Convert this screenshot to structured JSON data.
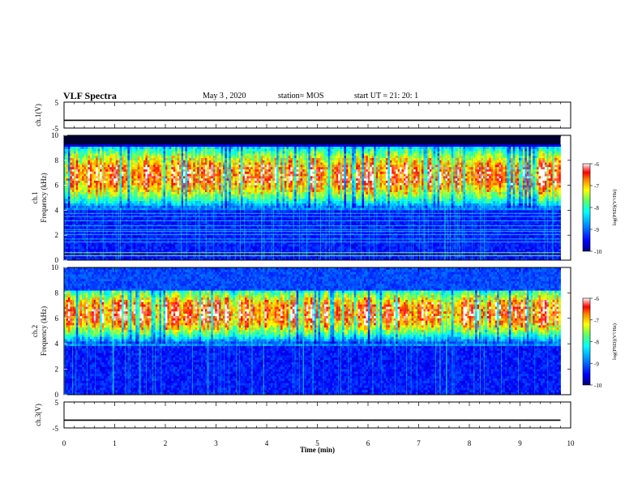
{
  "header": {
    "title": "VLF Spectra",
    "date": "May 3  , 2020",
    "station": "station= MOS",
    "start": "start  UT  =   21: 20: 1"
  },
  "chart_data": [
    {
      "type": "line",
      "panel": "ch1-voltage",
      "ylabel": "ch.1(V)",
      "yticks": [
        "5",
        "-5"
      ],
      "ylim": [
        -5,
        5
      ],
      "xlim": [
        0,
        10
      ],
      "series": [
        {
          "x": [
            0,
            9.8
          ],
          "values": [
            -2.0,
            -2.0
          ]
        }
      ]
    },
    {
      "type": "heatmap",
      "panel": "ch1-spectrogram",
      "ylabel": "ch.1",
      "ylabel2": "Frequency  (kHz)",
      "yticks": [
        "0",
        "2",
        "4",
        "6",
        "8",
        "10"
      ],
      "ylim": [
        0,
        10
      ],
      "xlim": [
        0,
        9.8
      ],
      "colorbar": {
        "label": "log(PSD)(V²/Hz)",
        "ticks": [
          "-6",
          "-7",
          "-8",
          "-9",
          "-10"
        ],
        "range": [
          -10,
          -6
        ]
      },
      "features": {
        "black_band_khz": [
          9.2,
          10
        ],
        "emission_band_khz": [
          4.2,
          9.0
        ],
        "peak_band_khz": [
          6.0,
          7.6
        ],
        "background_below_khz": 4.0,
        "horizontal_lines_khz": [
          0.35,
          0.6,
          1.45,
          1.7,
          2.05,
          2.3,
          2.45,
          2.75,
          3.15,
          3.5,
          3.75
        ]
      }
    },
    {
      "type": "heatmap",
      "panel": "ch2-spectrogram",
      "ylabel": "ch.2",
      "ylabel2": "Frequency  (kHz)",
      "yticks": [
        "0",
        "2",
        "4",
        "6",
        "8",
        "10"
      ],
      "ylim": [
        0,
        10
      ],
      "xlim": [
        0,
        9.8
      ],
      "colorbar": {
        "label": "log(PSD)(V²/Hz)",
        "ticks": [
          "-6",
          "-7",
          "-8",
          "-9",
          "-10"
        ],
        "range": [
          -10,
          -6
        ]
      },
      "features": {
        "emission_band_khz": [
          4.0,
          8.2
        ],
        "peak_band_khz": [
          5.4,
          7.4
        ],
        "background_below_khz": 3.8
      }
    },
    {
      "type": "line",
      "panel": "ch3-voltage",
      "ylabel": "ch.3(V)",
      "yticks": [
        "5",
        "-5"
      ],
      "ylim": [
        -5,
        5
      ],
      "xlim": [
        0,
        10
      ],
      "series": [
        {
          "x": [
            0,
            9.8
          ],
          "values": [
            -2.0,
            -2.0
          ]
        }
      ]
    }
  ],
  "xaxis": {
    "label": "Time  (min)",
    "ticks": [
      "0",
      "1",
      "2",
      "3",
      "4",
      "5",
      "6",
      "7",
      "8",
      "9",
      "10"
    ],
    "xlim": [
      0,
      10
    ]
  },
  "colors": {
    "background": "#ffffff",
    "plot_bg_ch1": "#000000",
    "colormap": [
      "#000080",
      "#0000ff",
      "#0080ff",
      "#00ffff",
      "#80ff80",
      "#ffff00",
      "#ff8000",
      "#ff0000",
      "#ff8080",
      "#ffffff"
    ]
  }
}
